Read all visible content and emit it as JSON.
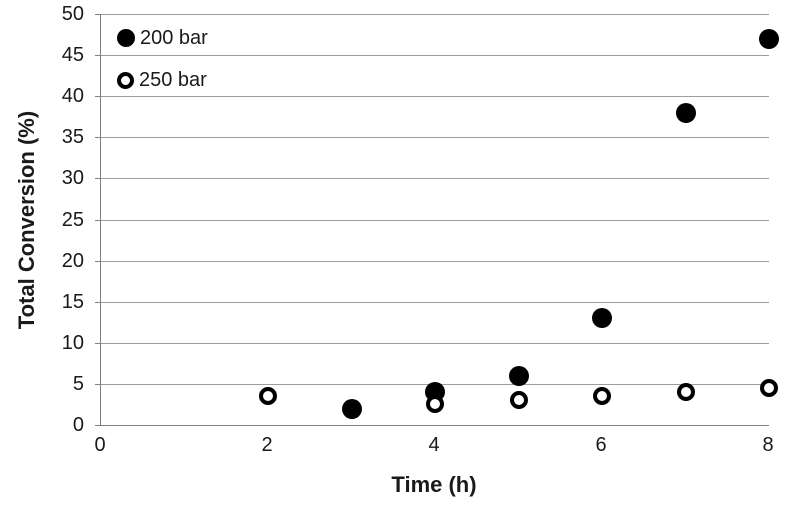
{
  "chart_data": {
    "type": "scatter",
    "title": "",
    "xlabel": "Time (h)",
    "ylabel": "Total Conversion (%)",
    "xlim": [
      0,
      8
    ],
    "ylim": [
      0,
      50
    ],
    "x_ticks": [
      0,
      2,
      4,
      6,
      8
    ],
    "y_tick_step": 5,
    "grid": "horizontal",
    "legend_position": "inside-top-left",
    "series": [
      {
        "name": "200 bar",
        "marker": "filled-circle",
        "points": [
          [
            3,
            2
          ],
          [
            4,
            4
          ],
          [
            5,
            6
          ],
          [
            6,
            13
          ],
          [
            7,
            38
          ],
          [
            8,
            47
          ]
        ]
      },
      {
        "name": "250 bar",
        "marker": "open-circle",
        "points": [
          [
            2,
            3.5
          ],
          [
            4,
            2.5
          ],
          [
            5,
            3
          ],
          [
            6,
            3.5
          ],
          [
            7,
            4
          ],
          [
            8,
            4.5
          ]
        ]
      }
    ],
    "colors": {
      "marker": "#000000",
      "gridline": "#9d9d9d",
      "axis": "#808080",
      "text": "#1a1a1a",
      "background": "#ffffff"
    }
  }
}
